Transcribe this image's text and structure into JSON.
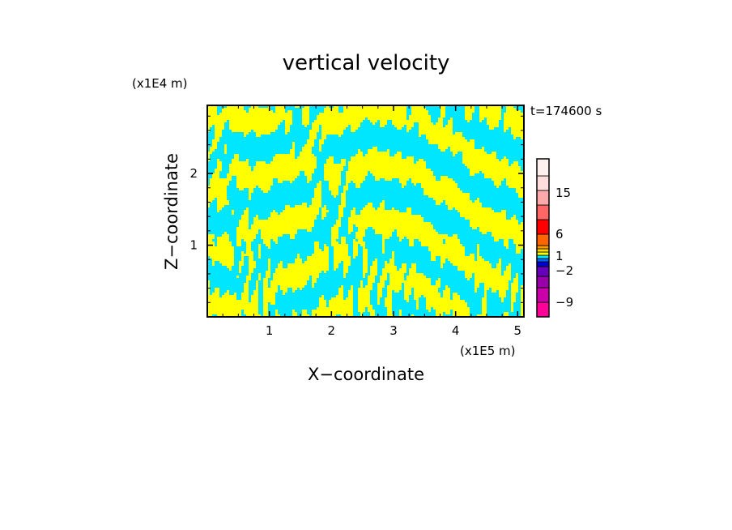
{
  "chart_data": {
    "type": "heatmap",
    "title": "vertical velocity",
    "xlabel": "X−coordinate",
    "ylabel": "Z−coordinate",
    "x_unit": "(x1E5 m)",
    "y_unit": "(x1E4 m)",
    "time_label": "t=174600 s",
    "xlim": [
      0.0,
      5.1
    ],
    "ylim": [
      0.0,
      2.95
    ],
    "x_ticks": [
      1,
      2,
      3,
      4,
      5
    ],
    "x_tick_labels": [
      "1",
      "2",
      "3",
      "4",
      "5"
    ],
    "y_ticks": [
      1,
      2
    ],
    "y_tick_labels": [
      "1",
      "2"
    ],
    "field_levels_shown": [
      "negative (cyan)",
      "positive (yellow)"
    ],
    "colorbar": {
      "labels": [
        "15",
        "6",
        "1",
        "−2",
        "−9"
      ],
      "label_values": [
        15,
        6,
        1,
        -2,
        -9
      ],
      "colors": [
        "#ff0099",
        "#cc00aa",
        "#9900aa",
        "#6600bb",
        "#0000cc",
        "#0066ff",
        "#00e6ff",
        "#ffff00",
        "#ffdd00",
        "#ff9900",
        "#ff6600",
        "#ff0000",
        "#ff6666",
        "#ffaaaa",
        "#ffdddd",
        "#fff0f0"
      ]
    },
    "colors": {
      "positive": "#ffff00",
      "negative": "#00e6ff",
      "frame": "#000000"
    }
  }
}
